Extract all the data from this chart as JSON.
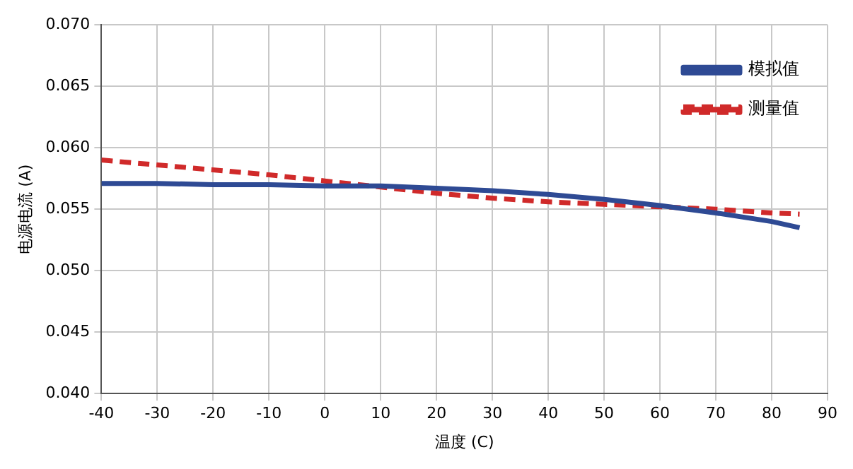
{
  "chart_data": {
    "type": "line",
    "xlabel": "温度 (C)",
    "ylabel": "电源电流 (A)",
    "xlim": [
      -40,
      90
    ],
    "xticks": [
      -40,
      -30,
      -20,
      -10,
      0,
      10,
      20,
      30,
      40,
      50,
      60,
      70,
      80,
      90
    ],
    "ylim": [
      0.04,
      0.07
    ],
    "yticks": [
      {
        "value": 0.04,
        "label": "0.040"
      },
      {
        "value": 0.045,
        "label": "0.045"
      },
      {
        "value": 0.05,
        "label": "0.050"
      },
      {
        "value": 0.055,
        "label": "0.055"
      },
      {
        "value": 0.06,
        "label": "0.060"
      },
      {
        "value": 0.065,
        "label": "0.065"
      },
      {
        "value": 0.07,
        "label": "0.070"
      }
    ],
    "x": [
      -40,
      -30,
      -20,
      -10,
      0,
      10,
      20,
      30,
      40,
      50,
      60,
      70,
      80,
      85
    ],
    "series": [
      {
        "name": "模拟值",
        "color": "#2e4a94",
        "line_style": "solid",
        "values": [
          0.0571,
          0.0571,
          0.057,
          0.057,
          0.0569,
          0.0569,
          0.0567,
          0.0565,
          0.0562,
          0.0558,
          0.0553,
          0.0547,
          0.054,
          0.0535
        ]
      },
      {
        "name": "测量值",
        "color": "#d02a2a",
        "line_style": "dashed",
        "values": [
          0.059,
          0.0586,
          0.0582,
          0.0578,
          0.0573,
          0.0568,
          0.0563,
          0.0559,
          0.0556,
          0.0554,
          0.0552,
          0.055,
          0.0547,
          0.0546
        ]
      }
    ],
    "grid": true,
    "legend": "top right",
    "marker": "none"
  }
}
